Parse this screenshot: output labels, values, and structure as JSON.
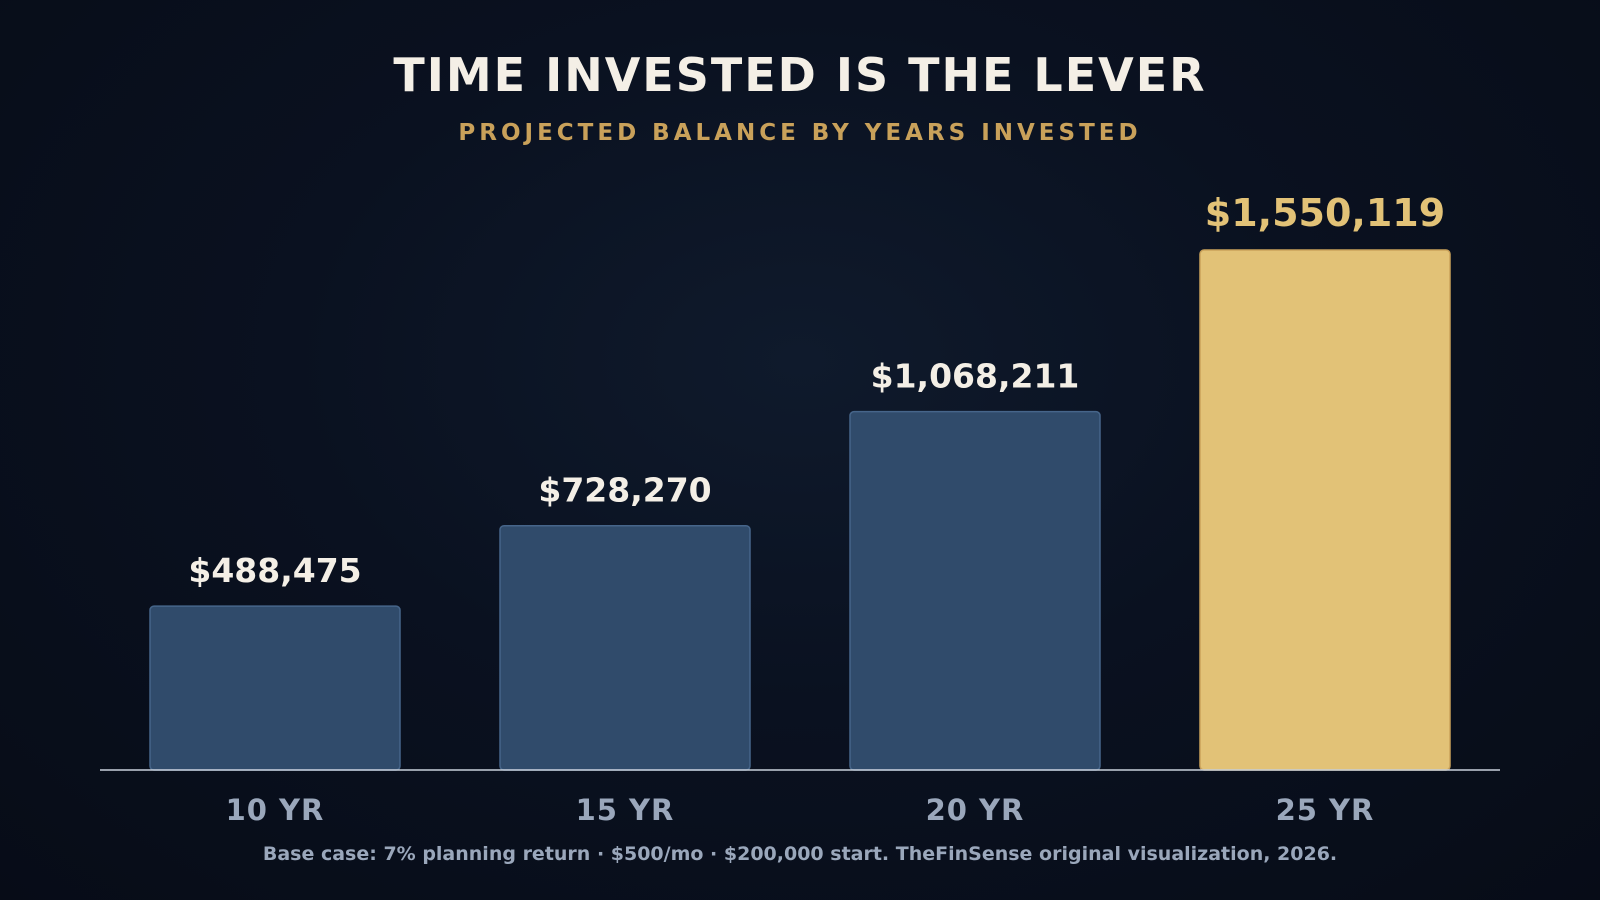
{
  "chart_data": {
    "type": "bar",
    "title": "TIME INVESTED IS THE LEVER",
    "subtitle": "PROJECTED BALANCE BY YEARS INVESTED",
    "categories": [
      "10 YR",
      "15 YR",
      "20 YR",
      "25 YR"
    ],
    "values": [
      488475,
      728270,
      1068211,
      1550119
    ],
    "value_labels": [
      "$488,475",
      "$728,270",
      "$1,068,211",
      "$1,550,119"
    ],
    "highlight_index": 3,
    "ylim": [
      0,
      1700000
    ],
    "grid": false,
    "legend": "none",
    "colors": {
      "bar": "#304b6b",
      "bar_border": "#46658a",
      "highlight": "#e2c277",
      "highlight_border": "#c9a15a",
      "value_label": "#f4efe6",
      "highlight_label": "#e2c277",
      "category_label": "#9aa7bb",
      "axis": "#c9d1dc"
    }
  },
  "footnote": "Base case: 7% planning return · $500/mo · $200,000 start. TheFinSense original visualization, 2026."
}
